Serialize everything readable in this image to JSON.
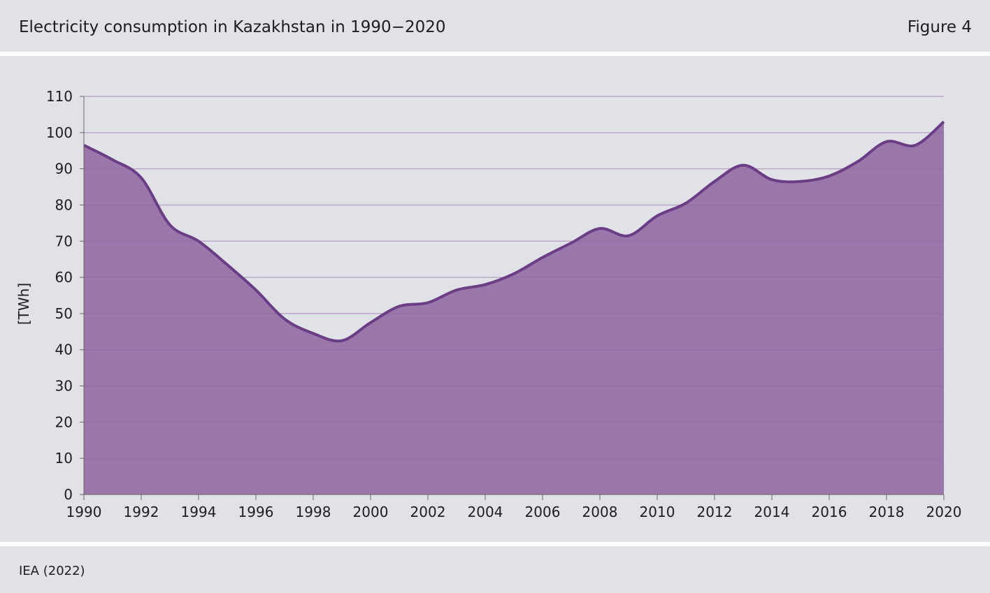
{
  "header": {
    "title": "Electricity consumption in Kazakhstan in 1990−2020",
    "figure_label": "Figure 4"
  },
  "footer": {
    "source": "IEA (2022)"
  },
  "colors": {
    "background": "#e1e2e7",
    "area_fill": "#9b76ab",
    "line": "#6a3d85",
    "gridline": "#f2f2f5",
    "axis": "#666666"
  },
  "chart_data": {
    "type": "area",
    "title": "Electricity consumption in Kazakhstan in 1990−2020",
    "xlabel": "",
    "ylabel": "[TWh]",
    "x": [
      1990,
      1991,
      1992,
      1993,
      1994,
      1995,
      1996,
      1997,
      1998,
      1999,
      2000,
      2001,
      2002,
      2003,
      2004,
      2005,
      2006,
      2007,
      2008,
      2009,
      2010,
      2011,
      2012,
      2013,
      2014,
      2015,
      2016,
      2017,
      2018,
      2019,
      2020
    ],
    "series": [
      {
        "values": [
          96.5,
          92.5,
          87.5,
          74.5,
          70.0,
          63.5,
          56.5,
          48.5,
          44.5,
          42.5,
          47.5,
          52.0,
          53.0,
          56.5,
          58.0,
          61.0,
          65.5,
          69.5,
          73.5,
          71.5,
          77.0,
          80.5,
          86.5,
          91.0,
          87.0,
          86.5,
          88.0,
          92.0,
          97.5,
          96.5,
          103.0
        ]
      }
    ],
    "xlim": [
      1990,
      2020
    ],
    "ylim": [
      0,
      110
    ],
    "x_ticks": [
      "1990",
      "1992",
      "1994",
      "1996",
      "1998",
      "2000",
      "2002",
      "2004",
      "2006",
      "2008",
      "2010",
      "2012",
      "2014",
      "2016",
      "2018",
      "2020"
    ],
    "y_ticks": [
      "0",
      "10",
      "20",
      "30",
      "40",
      "50",
      "60",
      "70",
      "80",
      "90",
      "100",
      "110"
    ],
    "grid": true,
    "legend": "none"
  }
}
